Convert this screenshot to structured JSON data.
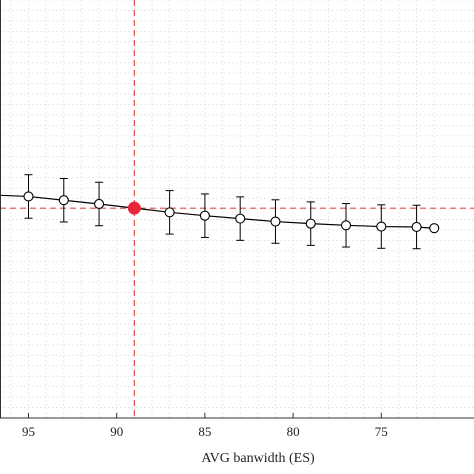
{
  "chart_data": {
    "type": "line",
    "title": "",
    "xlabel": "AVG banwidth (ES)",
    "ylabel": "",
    "x_reversed": true,
    "xlim": [
      98,
      72
    ],
    "ylim": [
      0,
      1
    ],
    "x_ticks": [
      95,
      90,
      85,
      80,
      75
    ],
    "x_tick_labels": [
      "95",
      "90",
      "85",
      "80",
      "75"
    ],
    "grid": true,
    "series": [
      {
        "marker": "open-circle",
        "color": "#000000",
        "points": [
          {
            "x": 98,
            "y": 0.535,
            "err": 0.0
          },
          {
            "x": 95,
            "y": 0.53,
            "err": 0.052
          },
          {
            "x": 93,
            "y": 0.521,
            "err": 0.052
          },
          {
            "x": 91,
            "y": 0.512,
            "err": 0.052
          },
          {
            "x": 87,
            "y": 0.492,
            "err": 0.052
          },
          {
            "x": 85,
            "y": 0.484,
            "err": 0.052
          },
          {
            "x": 83,
            "y": 0.477,
            "err": 0.052
          },
          {
            "x": 81,
            "y": 0.47,
            "err": 0.052
          },
          {
            "x": 79,
            "y": 0.465,
            "err": 0.052
          },
          {
            "x": 77,
            "y": 0.461,
            "err": 0.052
          },
          {
            "x": 75,
            "y": 0.458,
            "err": 0.052
          },
          {
            "x": 73,
            "y": 0.457,
            "err": 0.052
          },
          {
            "x": 72,
            "y": 0.454,
            "err": 0.0
          }
        ]
      }
    ],
    "highlight_point": {
      "x": 89.0,
      "y": 0.502,
      "color": "#e8253a"
    },
    "reference_lines": {
      "vertical_x": 89.0,
      "horizontal_y": 0.502,
      "color": "#e05050",
      "style": "dashed"
    }
  }
}
